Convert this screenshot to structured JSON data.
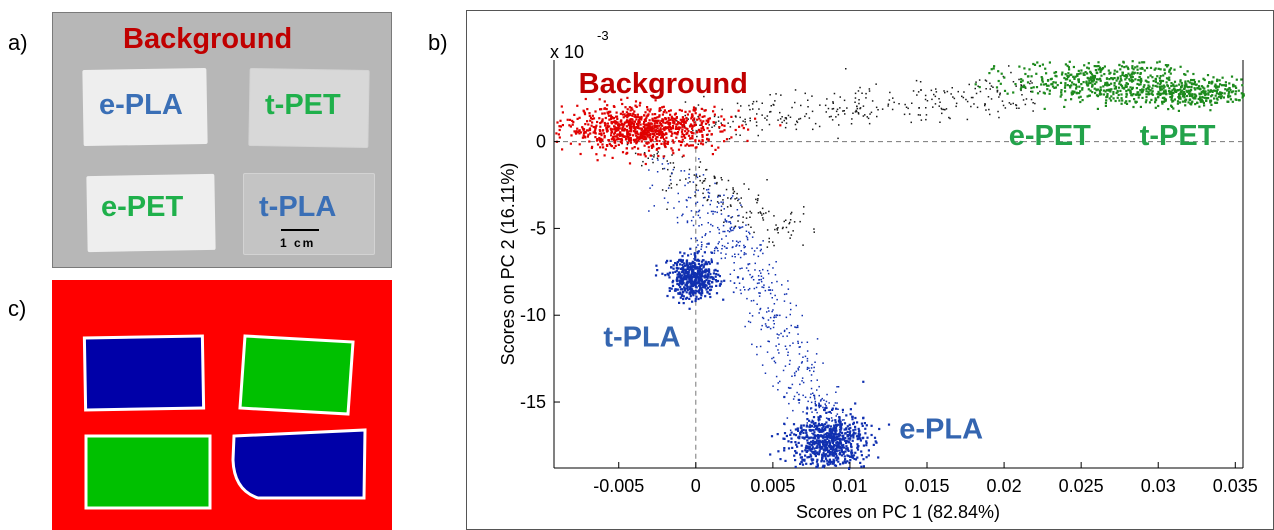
{
  "panels": {
    "a": "a)",
    "b": "b)",
    "c": "c)"
  },
  "photo": {
    "labels": {
      "background": "Background",
      "e_pla": "e-PLA",
      "t_pet": "t-PET",
      "e_pet": "e-PET",
      "t_pla": "t-PLA"
    },
    "scale_bar": "1 cm",
    "colors": {
      "background": "#c00000",
      "pla": "#3a6fb6",
      "pet": "#1fb04b"
    }
  },
  "classification_map": {
    "colors": {
      "background": "#ff0000",
      "pla": "#0000a8",
      "pet": "#00c000"
    }
  },
  "chart_data": {
    "type": "scatter",
    "xlabel": "Scores on PC 1 (82.84%)",
    "ylabel": "Scores on PC 2 (16.11%)",
    "y_multiplier": "x 10",
    "y_multiplier_exponent": "-3",
    "xlim": [
      -0.0092,
      0.0355
    ],
    "ylim": [
      -0.0188,
      0.0047
    ],
    "x_ticks": [
      -0.005,
      0,
      0.005,
      0.01,
      0.015,
      0.02,
      0.025,
      0.03,
      0.035
    ],
    "x_tick_labels": [
      "-0.005",
      "0",
      "0.005",
      "0.01",
      "0.015",
      "0.02",
      "0.025",
      "0.03",
      "0.035"
    ],
    "y_ticks": [
      0,
      -0.005,
      -0.01,
      -0.015
    ],
    "y_tick_labels": [
      "0",
      "-5",
      "-10",
      "-15"
    ],
    "zero_lines": "dashed",
    "grid": false,
    "series": [
      {
        "name": "Background",
        "color": "#e00000",
        "cx": -0.0035,
        "cy": 0.0008,
        "sx": 0.0025,
        "sy": 0.0006,
        "n": 900
      },
      {
        "name": "t-PLA",
        "color": "#1030b0",
        "cx": -0.0002,
        "cy": -0.0078,
        "sx": 0.0008,
        "sy": 0.0006,
        "n": 500
      },
      {
        "name": "e-PLA",
        "color": "#1030b0",
        "cx": 0.0085,
        "cy": -0.0172,
        "sx": 0.0012,
        "sy": 0.0008,
        "n": 700
      },
      {
        "name": "e-PET",
        "color": "#1d8a1d",
        "cx": 0.0265,
        "cy": 0.0036,
        "sx": 0.003,
        "sy": 0.0006,
        "n": 500
      },
      {
        "name": "t-PET",
        "color": "#1d8a1d",
        "cx": 0.032,
        "cy": 0.0028,
        "sx": 0.0025,
        "sy": 0.0004,
        "n": 400
      }
    ],
    "transition_points": [
      {
        "from": [
          -0.001,
          0.0012
        ],
        "to": [
          0.022,
          0.0028
        ],
        "color": "#1a1a1a",
        "n": 320
      },
      {
        "from": [
          -0.003,
          -0.0008
        ],
        "to": [
          0.006,
          -0.0052
        ],
        "color": "#1a1a1a",
        "n": 160
      },
      {
        "from": [
          0.001,
          -0.003
        ],
        "to": [
          0.0085,
          -0.0165
        ],
        "color": "#1030b0",
        "n": 420
      },
      {
        "from": [
          -0.002,
          -0.001
        ],
        "to": [
          0.001,
          -0.0065
        ],
        "color": "#1030b0",
        "n": 90
      }
    ],
    "annotations": [
      {
        "text": "Background",
        "x": -0.0076,
        "y": 0.0028,
        "color": "#c00000"
      },
      {
        "text": "e-PET",
        "x": 0.0203,
        "y": -0.0002,
        "color": "#22a34a"
      },
      {
        "text": "t-PET",
        "x": 0.0288,
        "y": -0.0002,
        "color": "#22a34a"
      },
      {
        "text": "t-PLA",
        "x": -0.006,
        "y": -0.0118,
        "color": "#3465b0"
      },
      {
        "text": "e-PLA",
        "x": 0.0132,
        "y": -0.0171,
        "color": "#3465b0"
      }
    ]
  }
}
